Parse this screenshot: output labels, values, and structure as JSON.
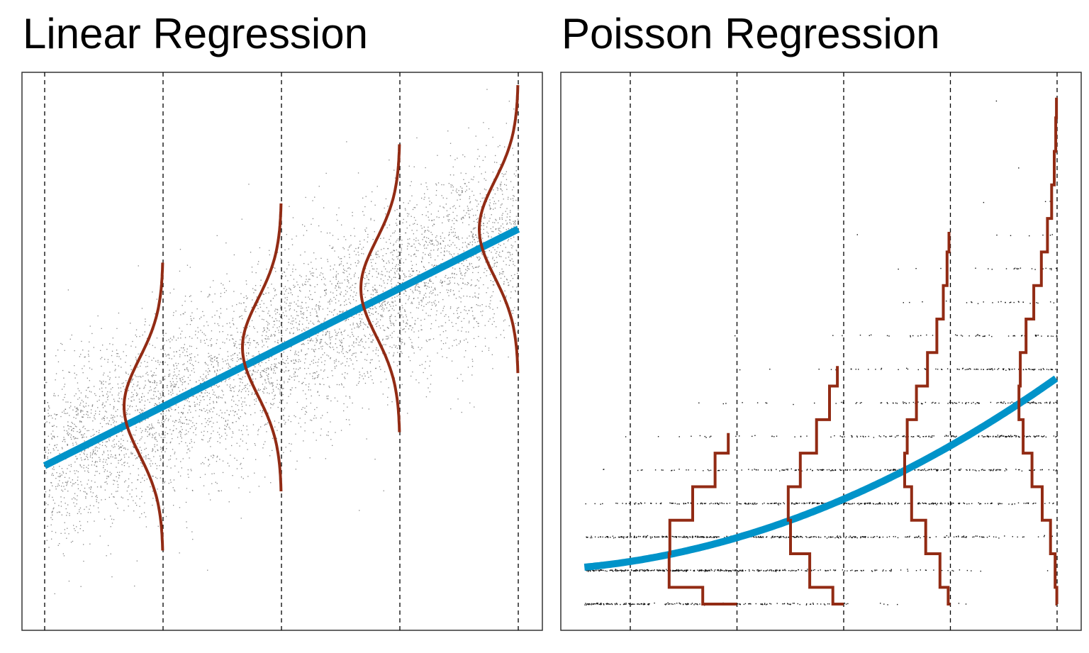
{
  "colors": {
    "fit": "#0093c9",
    "distribution": "#922b14",
    "points_linear": "#666666",
    "points_poisson": "#111111"
  },
  "chart_data": [
    {
      "type": "scatter",
      "title": "Linear Regression",
      "xlabel": "",
      "ylabel": "",
      "xlim": [
        -0.19,
        4.2
      ],
      "ylim": [
        0,
        10
      ],
      "grid": false,
      "reference_lines_x": [
        0,
        1,
        2,
        3,
        4
      ],
      "fit_line": {
        "intercept": 2.95,
        "slope": 1.06,
        "x_range": [
          0,
          4
        ]
      },
      "noise_sd": 0.86,
      "n_points": 5000,
      "conditional_distributions": {
        "type": "normal",
        "at_x": [
          1,
          2,
          3,
          4
        ],
        "sd": 0.86,
        "range_sd": 3
      }
    },
    {
      "type": "scatter",
      "title": "Poisson Regression",
      "xlabel": "",
      "ylabel": "",
      "xlim": [
        0.34,
        5.23
      ],
      "ylim": [
        -0.78,
        15.86
      ],
      "grid": false,
      "reference_lines_x": [
        1,
        2,
        3,
        4,
        5
      ],
      "fit_curve": {
        "form": "lambda = 1 + 0.05x + 0.22x^2",
        "coefficients": [
          1,
          0.05,
          0.22
        ],
        "x_range": [
          0.57,
          5
        ]
      },
      "n_points": 2000,
      "conditional_distributions": {
        "type": "poisson",
        "at_x": [
          2,
          3,
          4,
          5
        ],
        "max_k": [
          5,
          7,
          11,
          15
        ]
      }
    }
  ]
}
